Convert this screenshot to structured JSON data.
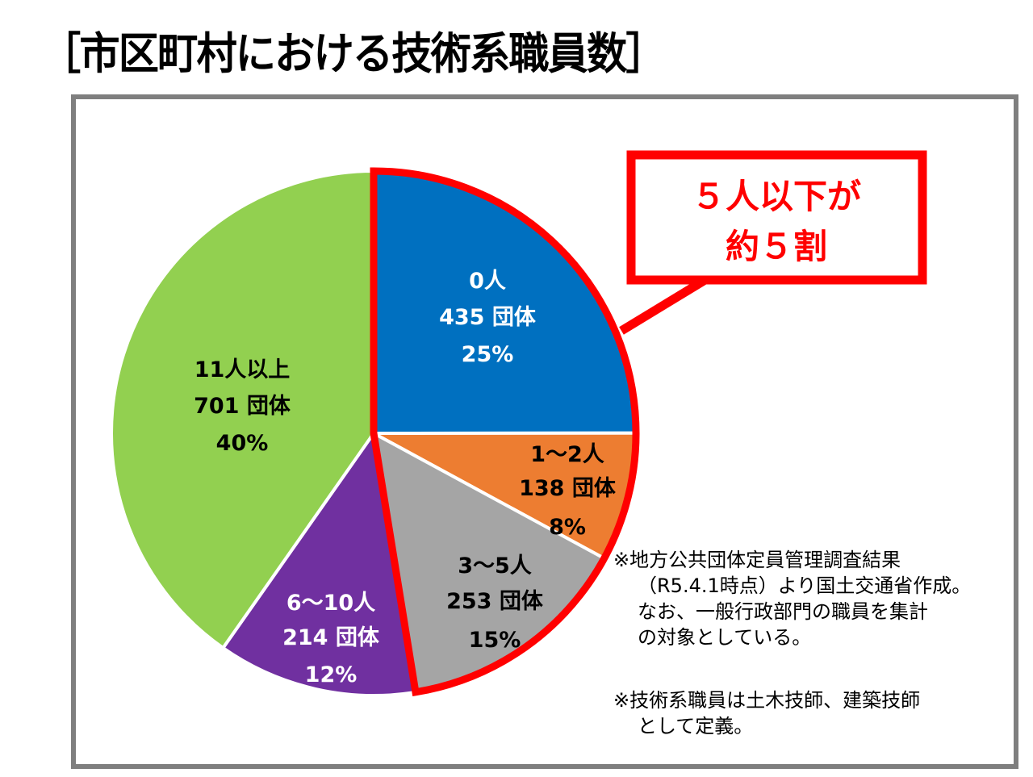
{
  "title": "［市区町村における技術系職員数］",
  "chart_data": {
    "type": "pie",
    "title": "市区町村における技術系職員数",
    "start_angle": "12 o'clock, clockwise",
    "categories": [
      "0人",
      "1～2人",
      "3～5人",
      "6～10人",
      "11人以上"
    ],
    "values": [
      435,
      138,
      253,
      214,
      701
    ],
    "unit": "団体",
    "percentages": [
      25,
      8,
      15,
      12,
      40
    ],
    "colors": [
      "#0070c0",
      "#ed7d31",
      "#a5a5a5",
      "#7030a0",
      "#92d050"
    ],
    "highlight": {
      "categories": [
        "0人",
        "1～2人",
        "3～5人"
      ],
      "outline_color": "#ff0000",
      "callout": "５人以下が約５割"
    }
  },
  "slices": [
    {
      "label": "0人",
      "count": "435 団体",
      "pct": "25%"
    },
    {
      "label": "1～2人",
      "count": "138 団体",
      "pct": "8%"
    },
    {
      "label": "3～5人",
      "count": "253 団体",
      "pct": "15%"
    },
    {
      "label": "6～10人",
      "count": "214 団体",
      "pct": "12%"
    },
    {
      "label": "11人以上",
      "count": "701 団体",
      "pct": "40%"
    }
  ],
  "callout": {
    "line1": "５人以下が",
    "line2": "約５割"
  },
  "notes": {
    "note1": [
      "※地方公共団体定員管理調査結果",
      "（R5.4.1時点）より国土交通省作成。",
      "なお、一般行政部門の職員を集計",
      "の対象としている。"
    ],
    "note2": [
      "※技術系職員は土木技師、建築技師",
      "として定義。"
    ]
  }
}
